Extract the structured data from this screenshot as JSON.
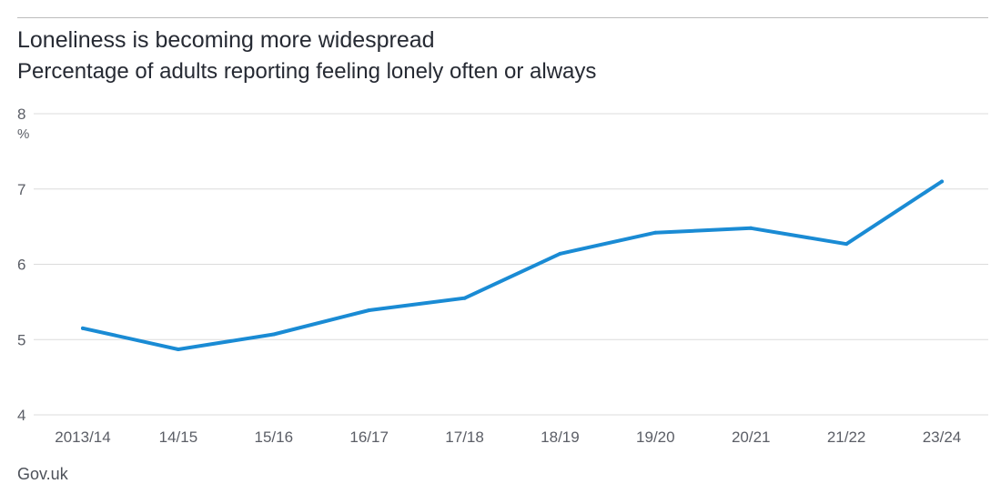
{
  "header": {
    "title": "Loneliness is becoming more widespread",
    "subtitle": "Percentage of adults reporting feeling lonely often or always"
  },
  "source": "Gov.uk",
  "colors": {
    "series": "#1a8bd4",
    "gridline": "#dcdcdc",
    "tick_text": "#5b5e66"
  },
  "chart_data": {
    "type": "line",
    "title": "Loneliness is becoming more widespread",
    "subtitle": "Percentage of adults reporting feeling lonely often or always",
    "xlabel": "",
    "ylabel": "%",
    "categories": [
      "2013/14",
      "14/15",
      "15/16",
      "16/17",
      "17/18",
      "18/19",
      "19/20",
      "20/21",
      "21/22",
      "23/24"
    ],
    "values": [
      5.15,
      4.87,
      5.07,
      5.39,
      5.55,
      6.14,
      6.42,
      6.48,
      6.27,
      7.1
    ],
    "ylim": [
      4,
      8
    ],
    "yticks": [
      "4",
      "5",
      "6",
      "7",
      "8"
    ],
    "grid": true,
    "legend": "none"
  }
}
